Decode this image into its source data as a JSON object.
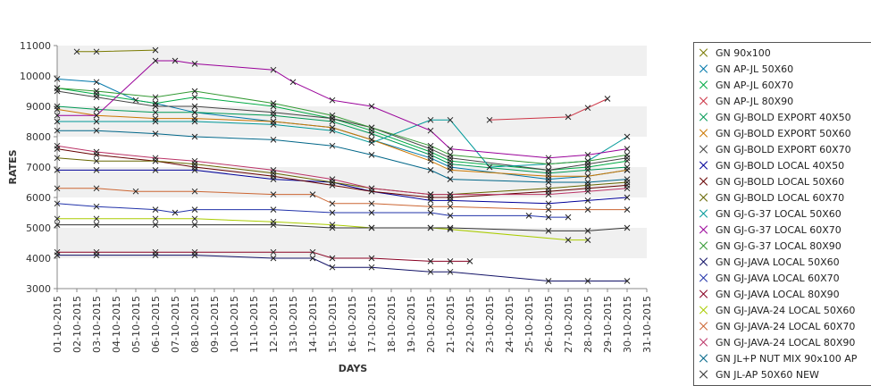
{
  "chart_data": {
    "type": "line",
    "xlabel": "DAYS",
    "ylabel": "RATES",
    "ylim": [
      3000,
      11000
    ],
    "yticks": [
      3000,
      4000,
      5000,
      6000,
      7000,
      8000,
      9000,
      10000,
      11000
    ],
    "grid": "horizontal bands",
    "legend_position": "right",
    "categories": [
      "01-10-2015",
      "02-10-2015",
      "03-10-2015",
      "04-10-2015",
      "05-10-2015",
      "06-10-2015",
      "07-10-2015",
      "08-10-2015",
      "09-10-2015",
      "10-10-2015",
      "11-10-2015",
      "12-10-2015",
      "13-10-2015",
      "14-10-2015",
      "15-10-2015",
      "16-10-2015",
      "17-10-2015",
      "18-10-2015",
      "19-10-2015",
      "20-10-2015",
      "21-10-2015",
      "22-10-2015",
      "23-10-2015",
      "24-10-2015",
      "25-10-2015",
      "26-10-2015",
      "27-10-2015",
      "28-10-2015",
      "29-10-2015",
      "30-10-2015",
      "31-10-2015"
    ],
    "series": [
      {
        "name": "GN 90x100",
        "color": "#7a7a00",
        "points": [
          [
            1,
            10800
          ],
          [
            2,
            10800
          ],
          [
            5,
            10850
          ]
        ]
      },
      {
        "name": "GN AP-JL 50X60",
        "color": "#0077aa",
        "points": [
          [
            0,
            9900
          ],
          [
            2,
            9800
          ],
          [
            4,
            9200
          ],
          [
            5,
            9100
          ],
          [
            7,
            8800
          ],
          [
            11,
            8500
          ],
          [
            14,
            8300
          ],
          [
            16,
            7900
          ],
          [
            19,
            7300
          ],
          [
            20,
            7000
          ],
          [
            25,
            6600
          ],
          [
            27,
            6700
          ],
          [
            29,
            6900
          ]
        ]
      },
      {
        "name": "GN AP-JL 60X70",
        "color": "#00aa44",
        "points": [
          [
            0,
            9600
          ],
          [
            2,
            9400
          ],
          [
            5,
            9100
          ],
          [
            7,
            9300
          ],
          [
            11,
            9000
          ],
          [
            14,
            8600
          ],
          [
            16,
            8200
          ],
          [
            19,
            7500
          ],
          [
            20,
            7200
          ],
          [
            25,
            6900
          ],
          [
            27,
            7000
          ],
          [
            29,
            7200
          ]
        ]
      },
      {
        "name": "GN AP-JL 80X90",
        "color": "#cc3344",
        "points": [
          [
            22,
            8550
          ],
          [
            26,
            8650
          ],
          [
            27,
            8950
          ],
          [
            28,
            9250
          ]
        ]
      },
      {
        "name": "GN GJ-BOLD EXPORT 40X50",
        "color": "#009955",
        "points": [
          [
            0,
            9000
          ],
          [
            2,
            8900
          ],
          [
            5,
            8800
          ],
          [
            7,
            8800
          ],
          [
            11,
            8700
          ],
          [
            14,
            8500
          ],
          [
            16,
            8100
          ],
          [
            19,
            7400
          ],
          [
            20,
            7100
          ],
          [
            25,
            6800
          ],
          [
            27,
            6900
          ],
          [
            29,
            7000
          ]
        ]
      },
      {
        "name": "GN GJ-BOLD EXPORT 50X60",
        "color": "#cc7700",
        "points": [
          [
            0,
            8900
          ],
          [
            2,
            8700
          ],
          [
            5,
            8600
          ],
          [
            7,
            8600
          ],
          [
            11,
            8500
          ],
          [
            14,
            8300
          ],
          [
            16,
            7900
          ],
          [
            19,
            7200
          ],
          [
            20,
            6900
          ],
          [
            25,
            6700
          ],
          [
            27,
            6700
          ],
          [
            29,
            6900
          ]
        ]
      },
      {
        "name": "GN GJ-BOLD EXPORT 60X70",
        "color": "#444444",
        "points": [
          [
            0,
            9500
          ],
          [
            2,
            9300
          ],
          [
            5,
            9000
          ],
          [
            7,
            9000
          ],
          [
            11,
            8800
          ],
          [
            14,
            8600
          ],
          [
            16,
            8300
          ],
          [
            19,
            7600
          ],
          [
            20,
            7300
          ],
          [
            25,
            6900
          ],
          [
            27,
            7100
          ],
          [
            29,
            7300
          ]
        ]
      },
      {
        "name": "GN GJ-BOLD LOCAL 40X50",
        "color": "#000099",
        "points": [
          [
            0,
            6900
          ],
          [
            2,
            6900
          ],
          [
            5,
            6900
          ],
          [
            7,
            6900
          ],
          [
            11,
            6600
          ],
          [
            14,
            6500
          ],
          [
            16,
            6200
          ],
          [
            19,
            5900
          ],
          [
            20,
            5900
          ],
          [
            25,
            5800
          ],
          [
            27,
            5900
          ],
          [
            29,
            6000
          ]
        ]
      },
      {
        "name": "GN GJ-BOLD LOCAL 50X60",
        "color": "#660000",
        "points": [
          [
            0,
            7600
          ],
          [
            2,
            7400
          ],
          [
            5,
            7200
          ],
          [
            7,
            7000
          ],
          [
            11,
            6700
          ],
          [
            14,
            6400
          ],
          [
            16,
            6200
          ],
          [
            19,
            6000
          ],
          [
            20,
            6000
          ],
          [
            25,
            6200
          ],
          [
            27,
            6300
          ],
          [
            29,
            6400
          ]
        ]
      },
      {
        "name": "GN GJ-BOLD LOCAL 60X70",
        "color": "#666600",
        "points": [
          [
            0,
            7300
          ],
          [
            2,
            7200
          ],
          [
            5,
            7200
          ],
          [
            7,
            7100
          ],
          [
            11,
            6800
          ],
          [
            14,
            6500
          ],
          [
            16,
            6300
          ],
          [
            19,
            6100
          ],
          [
            20,
            6100
          ],
          [
            25,
            6300
          ],
          [
            27,
            6400
          ],
          [
            29,
            6500
          ]
        ]
      },
      {
        "name": "GN GJ-G-37 LOCAL 50X60",
        "color": "#009999",
        "points": [
          [
            0,
            8500
          ],
          [
            2,
            8500
          ],
          [
            5,
            8500
          ],
          [
            7,
            8500
          ],
          [
            11,
            8400
          ],
          [
            14,
            8200
          ],
          [
            16,
            7800
          ],
          [
            19,
            8550
          ],
          [
            20,
            8550
          ],
          [
            22,
            7000
          ],
          [
            25,
            7100
          ],
          [
            27,
            7200
          ],
          [
            29,
            8000
          ]
        ]
      },
      {
        "name": "GN GJ-G-37 LOCAL 60X70",
        "color": "#990099",
        "points": [
          [
            0,
            8700
          ],
          [
            2,
            8700
          ],
          [
            5,
            10500
          ],
          [
            6,
            10500
          ],
          [
            7,
            10400
          ],
          [
            11,
            10200
          ],
          [
            12,
            9800
          ],
          [
            14,
            9200
          ],
          [
            16,
            9000
          ],
          [
            19,
            8200
          ],
          [
            20,
            7600
          ],
          [
            25,
            7300
          ],
          [
            27,
            7400
          ],
          [
            29,
            7600
          ]
        ]
      },
      {
        "name": "GN GJ-G-37 LOCAL 80X90",
        "color": "#339933",
        "points": [
          [
            0,
            9600
          ],
          [
            2,
            9500
          ],
          [
            5,
            9300
          ],
          [
            7,
            9500
          ],
          [
            11,
            9100
          ],
          [
            14,
            8700
          ],
          [
            16,
            8300
          ],
          [
            19,
            7700
          ],
          [
            20,
            7400
          ],
          [
            25,
            7100
          ],
          [
            27,
            7200
          ],
          [
            29,
            7400
          ]
        ]
      },
      {
        "name": "GN GJ-JAVA LOCAL 50X60",
        "color": "#111166",
        "points": [
          [
            0,
            4100
          ],
          [
            2,
            4100
          ],
          [
            5,
            4100
          ],
          [
            7,
            4100
          ],
          [
            11,
            4000
          ],
          [
            13,
            4000
          ],
          [
            14,
            3700
          ],
          [
            16,
            3700
          ],
          [
            19,
            3550
          ],
          [
            20,
            3550
          ],
          [
            25,
            3250
          ],
          [
            27,
            3250
          ],
          [
            29,
            3250
          ]
        ]
      },
      {
        "name": "GN GJ-JAVA LOCAL 60X70",
        "color": "#2233aa",
        "points": [
          [
            0,
            5800
          ],
          [
            2,
            5700
          ],
          [
            5,
            5600
          ],
          [
            6,
            5500
          ],
          [
            7,
            5600
          ],
          [
            11,
            5600
          ],
          [
            14,
            5500
          ],
          [
            16,
            5500
          ],
          [
            19,
            5500
          ],
          [
            20,
            5400
          ],
          [
            24,
            5400
          ],
          [
            25,
            5350
          ],
          [
            26,
            5350
          ]
        ]
      },
      {
        "name": "GN GJ-JAVA LOCAL 80X90",
        "color": "#880022",
        "points": [
          [
            0,
            4200
          ],
          [
            2,
            4200
          ],
          [
            5,
            4200
          ],
          [
            7,
            4200
          ],
          [
            11,
            4200
          ],
          [
            13,
            4200
          ],
          [
            14,
            4000
          ],
          [
            16,
            4000
          ],
          [
            19,
            3900
          ],
          [
            20,
            3900
          ],
          [
            21,
            3900
          ]
        ]
      },
      {
        "name": "GN GJ-JAVA-24 LOCAL 50X60",
        "color": "#aacc00",
        "points": [
          [
            0,
            5300
          ],
          [
            2,
            5300
          ],
          [
            5,
            5300
          ],
          [
            7,
            5300
          ],
          [
            11,
            5200
          ],
          [
            14,
            5100
          ],
          [
            16,
            5000
          ],
          [
            19,
            5000
          ],
          [
            20,
            4950
          ],
          [
            26,
            4600
          ],
          [
            27,
            4600
          ]
        ]
      },
      {
        "name": "GN GJ-JAVA-24 LOCAL 60X70",
        "color": "#cc6633",
        "points": [
          [
            0,
            6300
          ],
          [
            2,
            6300
          ],
          [
            4,
            6200
          ],
          [
            7,
            6200
          ],
          [
            11,
            6100
          ],
          [
            13,
            6100
          ],
          [
            14,
            5800
          ],
          [
            16,
            5800
          ],
          [
            19,
            5700
          ],
          [
            20,
            5700
          ],
          [
            25,
            5600
          ],
          [
            27,
            5600
          ],
          [
            29,
            5600
          ]
        ]
      },
      {
        "name": "GN GJ-JAVA-24 LOCAL 80X90",
        "color": "#bb3366",
        "points": [
          [
            0,
            7700
          ],
          [
            2,
            7500
          ],
          [
            5,
            7300
          ],
          [
            7,
            7200
          ],
          [
            11,
            6900
          ],
          [
            14,
            6600
          ],
          [
            16,
            6300
          ],
          [
            19,
            6100
          ],
          [
            20,
            6100
          ],
          [
            25,
            6100
          ],
          [
            27,
            6200
          ],
          [
            29,
            6300
          ]
        ]
      },
      {
        "name": "GN JL+P NUT MIX 90x100 AP",
        "color": "#006688",
        "points": [
          [
            0,
            8200
          ],
          [
            2,
            8200
          ],
          [
            5,
            8100
          ],
          [
            7,
            8000
          ],
          [
            11,
            7900
          ],
          [
            14,
            7700
          ],
          [
            16,
            7400
          ],
          [
            19,
            6900
          ],
          [
            20,
            6600
          ],
          [
            25,
            6500
          ],
          [
            27,
            6500
          ],
          [
            29,
            6600
          ]
        ]
      },
      {
        "name": "GN JL-AP 50X60 NEW",
        "color": "#333333",
        "points": [
          [
            0,
            5100
          ],
          [
            2,
            5100
          ],
          [
            5,
            5100
          ],
          [
            7,
            5100
          ],
          [
            11,
            5100
          ],
          [
            14,
            5000
          ],
          [
            16,
            5000
          ],
          [
            19,
            5000
          ],
          [
            20,
            5000
          ],
          [
            25,
            4900
          ],
          [
            27,
            4900
          ],
          [
            29,
            5000
          ]
        ]
      }
    ]
  }
}
